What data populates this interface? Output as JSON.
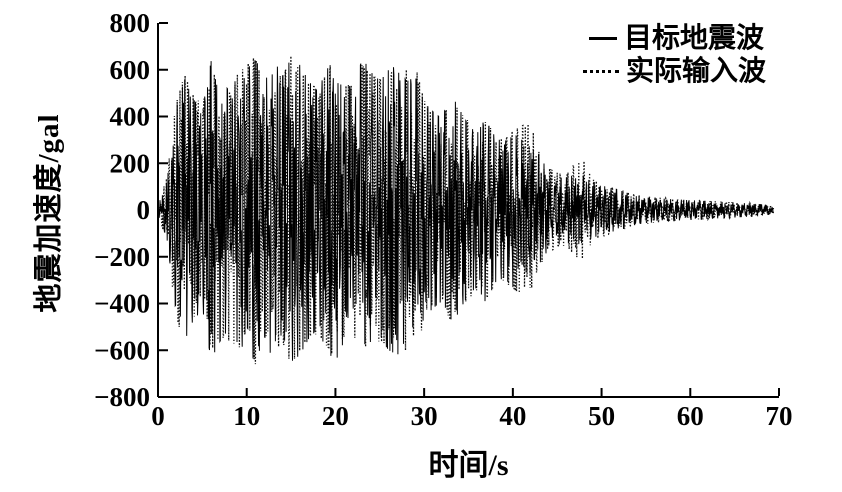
{
  "figure": {
    "background_color": "#ffffff",
    "ink_color": "#000000"
  },
  "chart_data": {
    "type": "line",
    "title": "",
    "xlabel": "时间/s",
    "ylabel": "地震加速度/gal",
    "xlim": [
      0,
      70
    ],
    "ylim": [
      -800,
      800
    ],
    "xticks": [
      0,
      10,
      20,
      30,
      40,
      50,
      60,
      70
    ],
    "xtick_labels": [
      "0",
      "10",
      "20",
      "30",
      "40",
      "50",
      "60",
      "70"
    ],
    "yticks": [
      800,
      600,
      400,
      200,
      0,
      -200,
      -400,
      -600,
      -800
    ],
    "ytick_labels": [
      "800",
      "600",
      "400",
      "200",
      "0",
      "−200",
      "−400",
      "−600",
      "−800"
    ],
    "grid": false,
    "legend_position": "top-right",
    "signal_duration_s": 69.4,
    "envelope_sample_step_s": 1,
    "series": [
      {
        "name": "目标地震波",
        "line_style": "solid",
        "color": "#000000",
        "peak_gal": 650,
        "envelope_gal": [
          20,
          120,
          430,
          560,
          470,
          430,
          640,
          560,
          510,
          570,
          600,
          650,
          540,
          650,
          570,
          650,
          620,
          550,
          510,
          600,
          650,
          560,
          510,
          645,
          600,
          550,
          600,
          620,
          550,
          570,
          460,
          420,
          390,
          500,
          430,
          360,
          330,
          400,
          310,
          290,
          330,
          300,
          270,
          230,
          170,
          150,
          140,
          150,
          140,
          120,
          105,
          95,
          85,
          72,
          62,
          57,
          52,
          49,
          46,
          44,
          42,
          40,
          38,
          36,
          34,
          32,
          30,
          27,
          24,
          20,
          0
        ]
      },
      {
        "name": "实际输入波",
        "line_style": "dotted",
        "color": "#000000",
        "peak_gal": 660,
        "envelope_gal": [
          20,
          140,
          450,
          580,
          490,
          450,
          600,
          540,
          560,
          580,
          620,
          660,
          520,
          620,
          560,
          660,
          600,
          540,
          530,
          580,
          640,
          540,
          530,
          620,
          580,
          560,
          580,
          600,
          600,
          620,
          470,
          400,
          380,
          480,
          420,
          380,
          340,
          380,
          320,
          300,
          340,
          360,
          370,
          240,
          180,
          160,
          150,
          200,
          210,
          130,
          115,
          100,
          90,
          76,
          66,
          60,
          55,
          51,
          48,
          45,
          43,
          41,
          39,
          37,
          35,
          33,
          31,
          28,
          25,
          21,
          0
        ]
      }
    ]
  }
}
